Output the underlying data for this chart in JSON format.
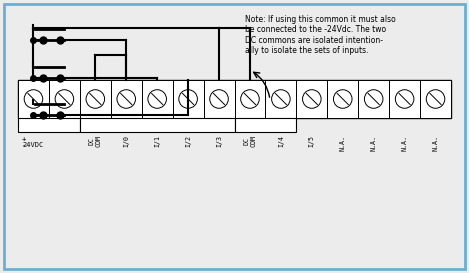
{
  "bg_color": "#ececec",
  "border_color": "#6aafd4",
  "line_color": "#000000",
  "note_text": "Note: If using this common it must also\nbe connected to the -24Vdc. The two\nDC commons are isolated intention-\nally to isolate the sets of inputs.",
  "labels": [
    "+\n24VDC",
    "-",
    "DC\nCOM",
    "I/0",
    "I/1",
    "I/2",
    "I/3",
    "DC\nCOM",
    "I/4",
    "I/5",
    "N.A.",
    "N.A.",
    "N.A.",
    "N.A."
  ],
  "num_terminals": 14,
  "figw": 4.69,
  "figh": 2.73,
  "dpi": 100
}
